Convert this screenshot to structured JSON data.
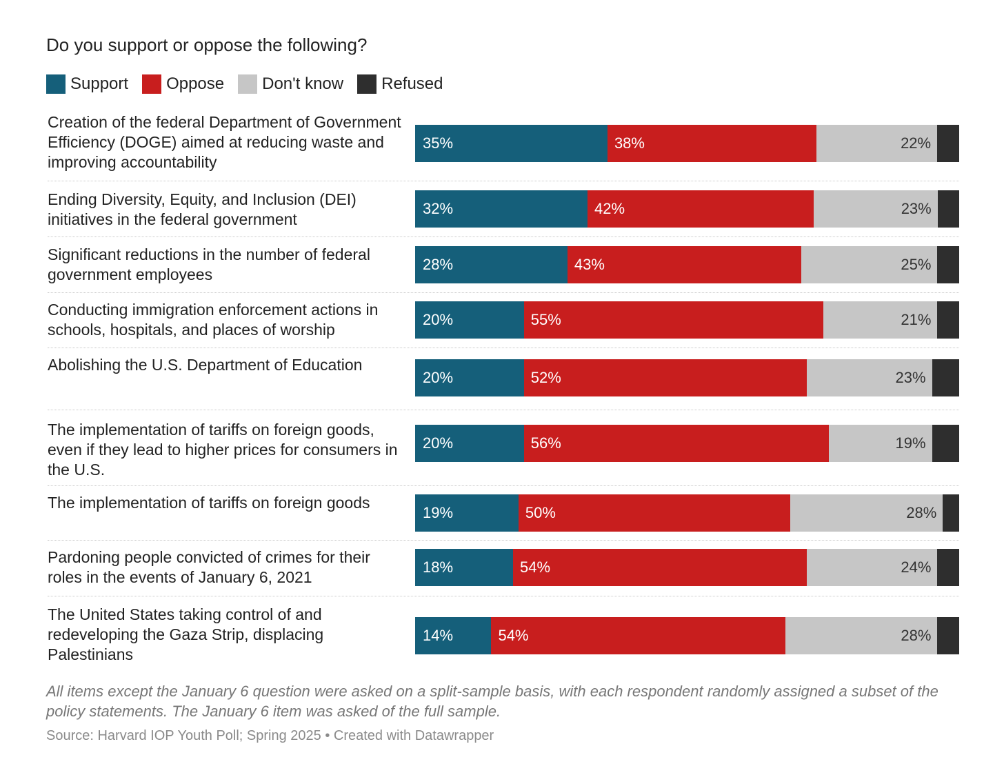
{
  "chart_data": {
    "type": "bar",
    "orientation": "horizontal",
    "stacked": true,
    "title": "Do you support or oppose the following?",
    "legend": {
      "placement": "top-left",
      "show": true
    },
    "series": [
      {
        "name": "Support",
        "color": "#155f7a",
        "values": [
          35,
          32,
          28,
          20,
          20,
          20,
          19,
          18,
          14
        ]
      },
      {
        "name": "Oppose",
        "color": "#c81e1e",
        "values": [
          38,
          42,
          43,
          55,
          52,
          56,
          50,
          54,
          54
        ]
      },
      {
        "name": "Don't know",
        "color": "#c6c6c6",
        "values": [
          22,
          23,
          25,
          21,
          23,
          19,
          28,
          24,
          28
        ]
      },
      {
        "name": "Refused",
        "color": "#2e2e2e",
        "values": [
          4,
          4,
          4,
          4,
          5,
          5,
          3,
          4,
          4
        ]
      }
    ],
    "categories": [
      "Creation of the federal Department of Government Efficiency (DOGE) aimed at reducing waste and improving accountability",
      "Ending Diversity, Equity, and Inclusion (DEI) initiatives in the federal government",
      "Significant reductions in the number of federal government employees",
      "Conducting immigration enforcement actions in schools, hospitals, and places of worship",
      "Abolishing the U.S. Department of Education",
      "The implementation of tariffs on foreign goods, even if they lead to higher prices for consumers in the U.S.",
      "The implementation of tariffs on foreign goods",
      "Pardoning people convicted of crimes for their roles in the events of January 6, 2021",
      "The United States taking control of and redeveloping the Gaza Strip, displacing Palestinians"
    ],
    "value_suffix": "%",
    "labelled_series": [
      "Support",
      "Oppose",
      "Don't know"
    ],
    "xlim": [
      0,
      100
    ],
    "grid": false
  },
  "notes": "All items except the January 6 question were asked on a split-sample basis, with each respondent randomly assigned a subset of the policy statements. The January 6 item was asked of the full sample.",
  "source": "Source: Harvard IOP Youth Poll; Spring 2025 • Created with Datawrapper"
}
